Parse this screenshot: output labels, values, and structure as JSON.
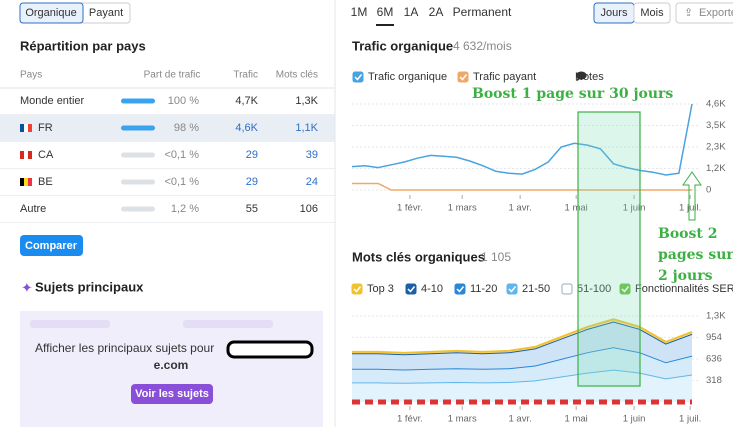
{
  "left": {
    "tabs": [
      "Organique",
      "Payant"
    ],
    "country_title": "Répartition par pays",
    "columns": [
      "Pays",
      "Part de trafic",
      "Trafic",
      "Mots clés"
    ],
    "rows": [
      [
        "Monde entier",
        "100 %",
        "4,7K",
        "1,3K"
      ],
      [
        "FR",
        "98 %",
        "4,6K",
        "1,1K"
      ],
      [
        "CA",
        "<0,1 %",
        "29",
        "39"
      ],
      [
        "BE",
        "<0,1 %",
        "29",
        "24"
      ],
      [
        "Autre",
        "1,2 %",
        "55",
        "106"
      ]
    ],
    "compare_button": "Comparer",
    "topics_title": "Sujets principaux",
    "topics_text": "Afficher les principaux sujets pour",
    "topics_domain": "e.com",
    "topics_button": "Voir les sujets"
  },
  "toolbar": {
    "periods": [
      "1M",
      "6M",
      "1A",
      "2A",
      "Permanent"
    ],
    "granularity": [
      "Jours",
      "Mois"
    ],
    "export": "Exporte"
  },
  "traffic_chart": {
    "type": "line",
    "title": "Trafic organique",
    "summary": "4 632/mois",
    "notes": "Notes",
    "series": [
      {
        "name": "Trafic organique",
        "color": "#4aa3df",
        "values": [
          1250,
          1300,
          1200,
          1350,
          1500,
          1700,
          1850,
          1800,
          1750,
          1550,
          1300,
          1000,
          900,
          850,
          1100,
          1500,
          2300,
          2500,
          2400,
          2200,
          1400,
          1200,
          1050,
          950,
          800,
          900,
          4600
        ]
      },
      {
        "name": "Trafic payant",
        "color": "#f0a868",
        "values": [
          350,
          350,
          350,
          0,
          0,
          0,
          0,
          0,
          0,
          0,
          0,
          0,
          0,
          0,
          0,
          0,
          0,
          0,
          0,
          0,
          0,
          0,
          0,
          0,
          0,
          0,
          0
        ]
      }
    ],
    "ylim": [
      0,
      4600
    ],
    "yticks": [
      0,
      {
        "value": 1150,
        "label": "1,2K"
      },
      {
        "value": 2300,
        "label": "2,3K"
      },
      {
        "value": 3450,
        "label": "3,5K"
      },
      {
        "value": 4600,
        "label": "4,6K"
      }
    ],
    "xlim": [
      0,
      182
    ],
    "xticks": [
      {
        "value": 31,
        "label": "1 févr."
      },
      {
        "value": 59,
        "label": "1 mars"
      },
      {
        "value": 90,
        "label": "1 avr."
      },
      {
        "value": 120,
        "label": "1 mai"
      },
      {
        "value": 151,
        "label": "1 juin"
      },
      {
        "value": 181,
        "label": "1 juil."
      }
    ],
    "grid": true,
    "annotations": [
      "Boost 1 page sur 30 jours",
      [
        "Boost 2",
        "pages sur",
        "2 jours"
      ]
    ]
  },
  "keywords_chart": {
    "type": "stacked-area",
    "title": "Mots clés organiques",
    "summary": "1 105",
    "series": [
      {
        "name": "Top 3",
        "color": "#f2c12e",
        "values": [
          20,
          20,
          20,
          20,
          20,
          20,
          20,
          22,
          26,
          30,
          33,
          30,
          24,
          28
        ]
      },
      {
        "name": "4-10",
        "color": "#1a5fa8",
        "values": [
          230,
          230,
          225,
          230,
          235,
          230,
          235,
          253,
          299,
          345,
          380,
          345,
          276,
          322
        ]
      },
      {
        "name": "11-20",
        "color": "#2a86d6",
        "values": [
          200,
          200,
          196,
          200,
          204,
          200,
          204,
          220,
          260,
          300,
          330,
          300,
          240,
          280
        ]
      },
      {
        "name": "21-50",
        "color": "#5fb6ec",
        "values": [
          290,
          290,
          284,
          290,
          296,
          290,
          296,
          319,
          377,
          435,
          479,
          435,
          348,
          406
        ]
      }
    ],
    "extra_legend": [
      {
        "name": "51-100"
      },
      {
        "name": "Fonctionnalités SERP",
        "color": "#6cbf3c"
      }
    ],
    "ylim": [
      0,
      1300
    ],
    "yticks": [
      {
        "value": 318,
        "label": "318"
      },
      {
        "value": 636,
        "label": "636"
      },
      {
        "value": 954,
        "label": "954"
      },
      {
        "value": 1272,
        "label": "1,3K"
      }
    ],
    "xlim": [
      0,
      182
    ],
    "xticks": [
      {
        "value": 31,
        "label": "1 févr."
      },
      {
        "value": 59,
        "label": "1 mars"
      },
      {
        "value": 90,
        "label": "1 avr."
      },
      {
        "value": 120,
        "label": "1 mai"
      },
      {
        "value": 151,
        "label": "1 juin"
      },
      {
        "value": 181,
        "label": "1 juil."
      }
    ],
    "grid": true
  }
}
